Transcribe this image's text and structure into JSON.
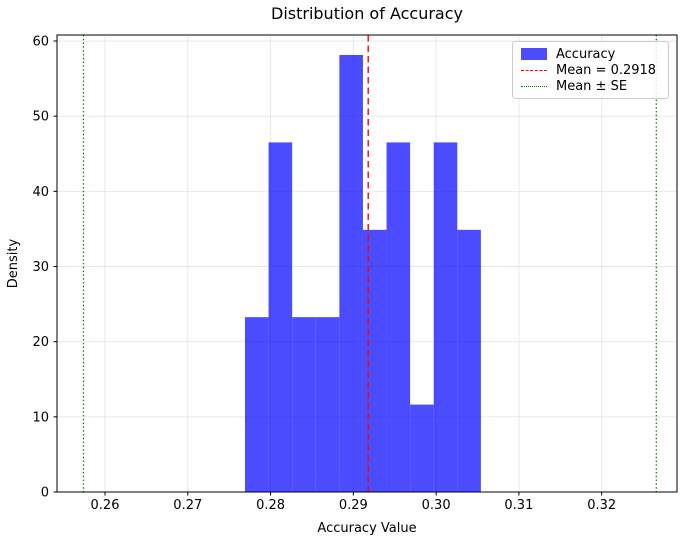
{
  "title": "Distribution of Accuracy",
  "axes": {
    "xlabel": "Accuracy Value",
    "ylabel": "Density"
  },
  "legend": {
    "position": "upper right",
    "items": [
      {
        "label": "Accuracy",
        "swatch": "patch"
      },
      {
        "label": "Mean = 0.2918",
        "swatch": "dashed-line"
      },
      {
        "label": "Mean ± SE",
        "swatch": "dotted-line"
      }
    ]
  },
  "chart_data": {
    "type": "bar",
    "subtype": "histogram",
    "title": "Distribution of Accuracy",
    "xlabel": "Accuracy Value",
    "ylabel": "Density",
    "bin_edges": [
      0.27691,
      0.27976,
      0.28261,
      0.28546,
      0.28831,
      0.29116,
      0.29401,
      0.29686,
      0.29971,
      0.30256,
      0.30541
    ],
    "densities": [
      23.26,
      46.51,
      23.26,
      23.26,
      58.14,
      34.88,
      46.51,
      11.63,
      46.51,
      34.88
    ],
    "series_name": "Accuracy",
    "mean": 0.2918,
    "mean_label": "Mean = 0.2918",
    "se_band": [
      0.2574,
      0.3266
    ],
    "se_label": "Mean ± SE",
    "xticks": [
      {
        "value": 0.26,
        "label": "0.26"
      },
      {
        "value": 0.27,
        "label": "0.27"
      },
      {
        "value": 0.28,
        "label": "0.28"
      },
      {
        "value": 0.29,
        "label": "0.29"
      },
      {
        "value": 0.3,
        "label": "0.30"
      },
      {
        "value": 0.31,
        "label": "0.31"
      },
      {
        "value": 0.32,
        "label": "0.32"
      }
    ],
    "yticks": [
      {
        "value": 0,
        "label": "0"
      },
      {
        "value": 10,
        "label": "10"
      },
      {
        "value": 20,
        "label": "20"
      },
      {
        "value": 30,
        "label": "30"
      },
      {
        "value": 40,
        "label": "40"
      },
      {
        "value": 50,
        "label": "50"
      },
      {
        "value": 60,
        "label": "60"
      }
    ],
    "xlim": [
      0.2542,
      0.3291
    ],
    "ylim": [
      0,
      60.8
    ],
    "grid": true,
    "colors": {
      "bar": "#0000ff",
      "bar_opacity": 0.7,
      "mean_line": "#ff0000",
      "se_line": "#008000",
      "grid": "#e6e6e6",
      "spine": "#000000"
    }
  }
}
